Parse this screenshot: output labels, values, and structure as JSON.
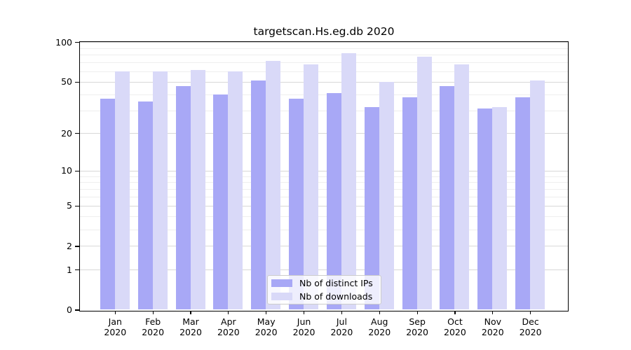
{
  "title": "targetscan.Hs.eg.db 2020",
  "colors": {
    "distinct_ips_bar": "#a8a8f6",
    "downloads_bar": "#d9d9f8",
    "grid_major": "#d8d8d8",
    "grid_minor": "#eeeeee",
    "axis": "#000000",
    "background": "#ffffff"
  },
  "legend": {
    "items": [
      {
        "label": "Nb of distinct IPs",
        "series": "distinct_ips"
      },
      {
        "label": "Nb of downloads",
        "series": "downloads"
      }
    ]
  },
  "chart_data": {
    "type": "bar",
    "title": "targetscan.Hs.eg.db 2020",
    "categories": [
      "Jan",
      "Feb",
      "Mar",
      "Apr",
      "May",
      "Jun",
      "Jul",
      "Aug",
      "Sep",
      "Oct",
      "Nov",
      "Dec"
    ],
    "x_sublabel": "2020",
    "series": [
      {
        "name": "Nb of distinct IPs",
        "color": "#a8a8f6",
        "values": [
          37,
          35,
          46,
          40,
          51,
          37,
          41,
          32,
          38,
          46,
          31,
          38
        ]
      },
      {
        "name": "Nb of downloads",
        "color": "#d9d9f8",
        "values": [
          60,
          60,
          61,
          60,
          72,
          68,
          82,
          50,
          77,
          68,
          32,
          51
        ]
      }
    ],
    "xlabel": "",
    "ylabel": "",
    "ylim": [
      0,
      100
    ],
    "y_scale": "pseudo-log log10(1+x)",
    "y_ticks": [
      0,
      1,
      2,
      5,
      10,
      20,
      50,
      100
    ],
    "y_minor_gridlines": [
      3,
      4,
      6,
      7,
      8,
      9,
      30,
      40,
      60,
      70,
      80,
      90
    ],
    "grid": true,
    "legend_position": "lower center"
  }
}
